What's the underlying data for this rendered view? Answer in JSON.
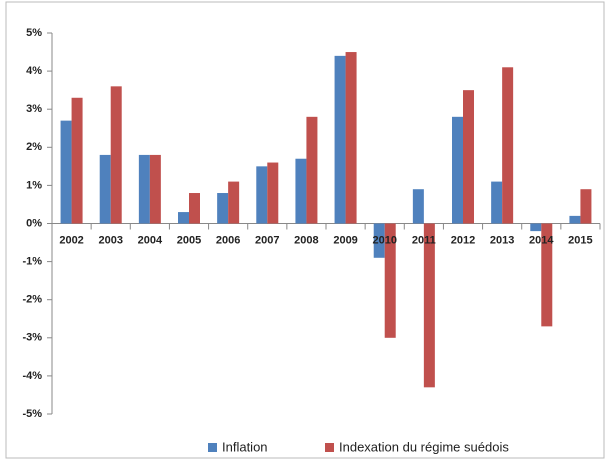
{
  "chart_data": {
    "type": "bar",
    "categories": [
      "2002",
      "2003",
      "2004",
      "2005",
      "2006",
      "2007",
      "2008",
      "2009",
      "2010",
      "2011",
      "2012",
      "2013",
      "2014",
      "2015"
    ],
    "series": [
      {
        "name": "Inflation",
        "color": "#4f81bd",
        "values": [
          2.7,
          1.8,
          1.8,
          0.3,
          0.8,
          1.5,
          1.7,
          4.4,
          -0.9,
          0.9,
          2.8,
          1.1,
          -0.2,
          0.2
        ]
      },
      {
        "name": "Indexation du régime suédois",
        "color": "#c0504d",
        "values": [
          3.3,
          3.6,
          1.8,
          0.8,
          1.1,
          1.6,
          2.8,
          4.5,
          -3.0,
          -4.3,
          3.5,
          4.1,
          -2.7,
          0.9
        ]
      }
    ],
    "ylim": [
      -5,
      5
    ],
    "yticks": [
      {
        "value": -5,
        "label": "-5%"
      },
      {
        "value": -4,
        "label": "-4%"
      },
      {
        "value": -3,
        "label": "-3%"
      },
      {
        "value": -2,
        "label": "-2%"
      },
      {
        "value": -1,
        "label": "-1%"
      },
      {
        "value": 0,
        "label": "0%"
      },
      {
        "value": 1,
        "label": "1%"
      },
      {
        "value": 2,
        "label": "2%"
      },
      {
        "value": 3,
        "label": "3%"
      },
      {
        "value": 4,
        "label": "4%"
      },
      {
        "value": 5,
        "label": "5%"
      }
    ],
    "grid": false,
    "legend": "bottom"
  }
}
